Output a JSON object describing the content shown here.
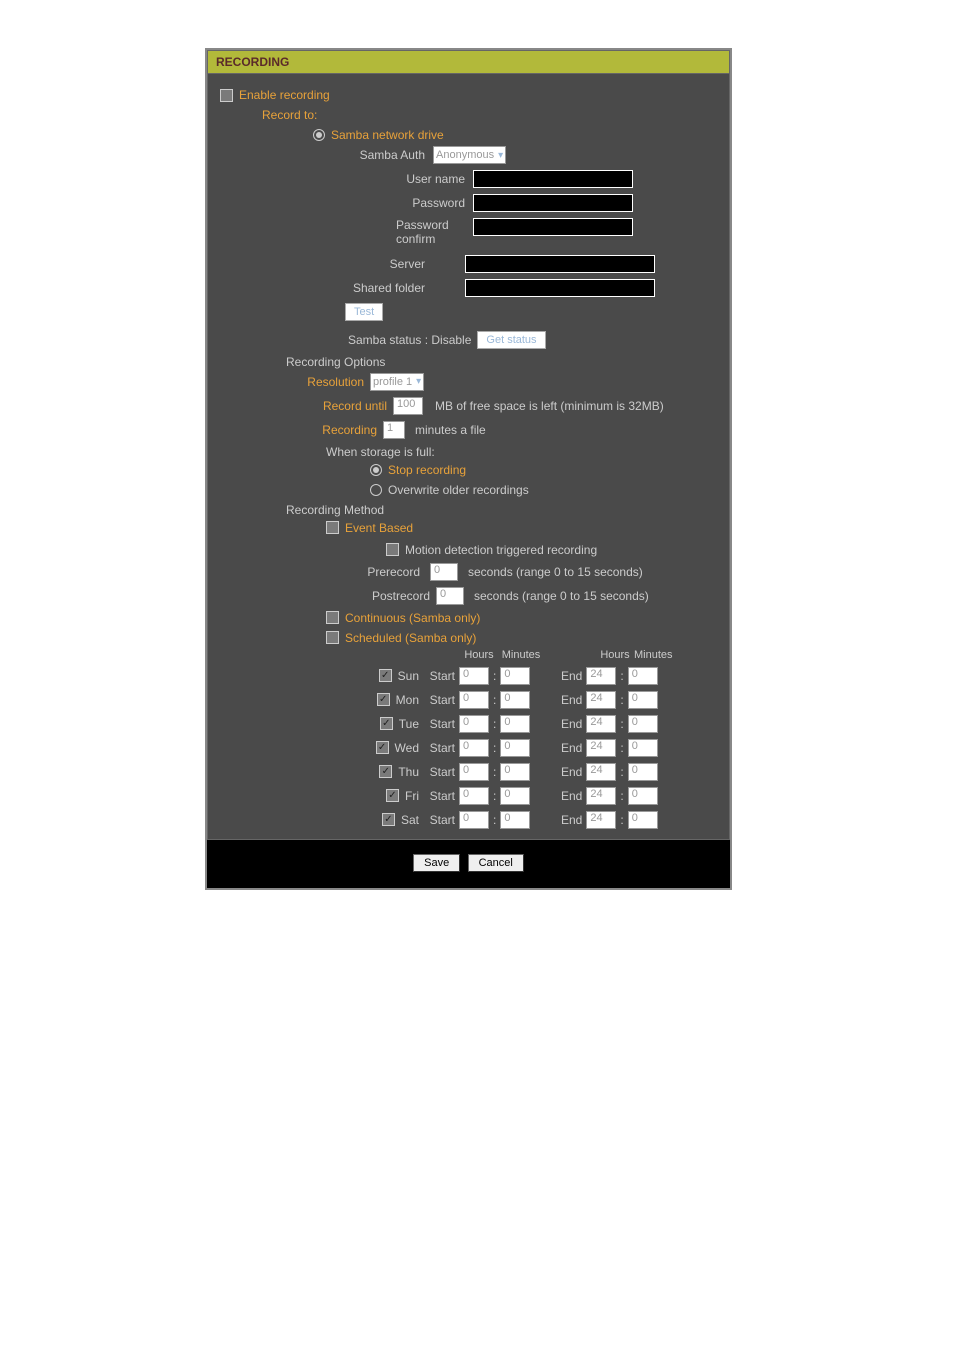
{
  "colors": {
    "header_bg": "#b2b93a",
    "header_text": "#5a2a2a",
    "panel_bg": "#4a4a4a",
    "outer_border": "#888888",
    "text": "#cccccc",
    "accent": "#e8a23a",
    "input_bg": "#000000",
    "input_border": "#ffffff",
    "disabled_text": "#999999",
    "disabled_btn_text": "#9ab8d8"
  },
  "panel_title": "RECORDING",
  "enable_recording": {
    "label": "Enable recording",
    "checked": false
  },
  "record_to": {
    "label": "Record to:",
    "samba": {
      "label": "Samba network drive",
      "selected": true,
      "auth": {
        "label": "Samba Auth",
        "value": "Anonymous"
      },
      "username": {
        "label": "User name",
        "value": ""
      },
      "password": {
        "label": "Password",
        "value": ""
      },
      "password_confirm": {
        "label": "Password confirm",
        "value": ""
      },
      "server": {
        "label": "Server",
        "value": ""
      },
      "shared_folder": {
        "label": "Shared folder",
        "value": ""
      },
      "test_btn": "Test",
      "status_label": "Samba status : Disable",
      "get_status_btn": "Get status"
    }
  },
  "recording_options": {
    "title": "Recording Options",
    "resolution": {
      "label": "Resolution",
      "value": "profile 1"
    },
    "record_until": {
      "label": "Record until",
      "value": "100",
      "suffix": "MB of free space is left (minimum is 32MB)"
    },
    "recording_minutes": {
      "label": "Recording",
      "value": "1",
      "suffix": "minutes a file"
    },
    "storage_full": {
      "title": "When storage is full:",
      "stop": {
        "label": "Stop recording",
        "selected": true
      },
      "overwrite": {
        "label": "Overwrite older recordings",
        "selected": false
      }
    }
  },
  "recording_method": {
    "title": "Recording Method",
    "event_based": {
      "label": "Event Based",
      "checked": false,
      "motion": {
        "label": "Motion detection triggered recording",
        "checked": false
      },
      "prerecord": {
        "label": "Prerecord",
        "value": "0",
        "suffix": "seconds (range 0 to 15 seconds)"
      },
      "postrecord": {
        "label": "Postrecord",
        "value": "0",
        "suffix": "seconds (range 0 to 15 seconds)"
      }
    },
    "continuous": {
      "label": "Continuous (Samba only)",
      "checked": false
    },
    "scheduled": {
      "label": "Scheduled (Samba only)",
      "checked": false,
      "headers": {
        "hours": "Hours",
        "minutes": "Minutes"
      },
      "start_label": "Start",
      "end_label": "End",
      "days": [
        {
          "name": "Sun",
          "checked": true,
          "start_h": "0",
          "start_m": "0",
          "end_h": "24",
          "end_m": "0"
        },
        {
          "name": "Mon",
          "checked": true,
          "start_h": "0",
          "start_m": "0",
          "end_h": "24",
          "end_m": "0"
        },
        {
          "name": "Tue",
          "checked": true,
          "start_h": "0",
          "start_m": "0",
          "end_h": "24",
          "end_m": "0"
        },
        {
          "name": "Wed",
          "checked": true,
          "start_h": "0",
          "start_m": "0",
          "end_h": "24",
          "end_m": "0"
        },
        {
          "name": "Thu",
          "checked": true,
          "start_h": "0",
          "start_m": "0",
          "end_h": "24",
          "end_m": "0"
        },
        {
          "name": "Fri",
          "checked": true,
          "start_h": "0",
          "start_m": "0",
          "end_h": "24",
          "end_m": "0"
        },
        {
          "name": "Sat",
          "checked": true,
          "start_h": "0",
          "start_m": "0",
          "end_h": "24",
          "end_m": "0"
        }
      ]
    }
  },
  "footer": {
    "save": "Save",
    "cancel": "Cancel"
  }
}
